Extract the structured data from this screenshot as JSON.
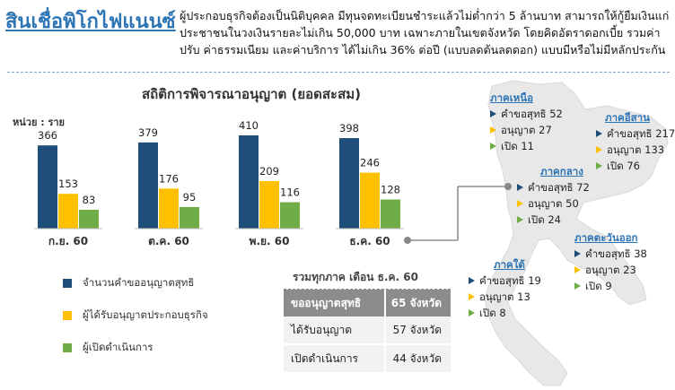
{
  "header": {
    "title": "สินเชื่อพิโกไฟแนนซ์",
    "description": "ผู้ประกอบธุรกิจต้องเป็นนิติบุคคล มีทุนจดทะเบียนชำระแล้วไม่ต่ำกว่า 5 ล้านบาท สามารถให้กู้ยืมเงินแก่ประชาชนในวงเงินรายละไม่เกิน 50,000 บาท เฉพาะภายในเขตจังหวัด โดยคิดอัตราดอกเบี้ย รวมค่าปรับ ค่าธรรมเนียม และค่าบริการ ได้ไม่เกิน 36% ต่อปี (แบบลดต้นลดดอก) แบบมีหรือไม่มีหลักประกัน"
  },
  "chart_data": {
    "type": "bar",
    "title": "สถิติการพิจารณาอนุญาต (ยอดสะสม)",
    "ylabel": "หน่วย : ราย",
    "categories": [
      "ก.ย. 60",
      "ต.ค. 60",
      "พ.ย. 60",
      "ธ.ค. 60"
    ],
    "series": [
      {
        "name": "จำนวนคำขออนุญาตสุทธิ",
        "color": "#1f4e79",
        "values": [
          366,
          379,
          410,
          398
        ]
      },
      {
        "name": "ผู้ได้รับอนุญาตประกอบธุรกิจ",
        "color": "#ffc000",
        "values": [
          153,
          176,
          209,
          246
        ]
      },
      {
        "name": "ผู้เปิดดำเนินการ",
        "color": "#70ad47",
        "values": [
          83,
          95,
          116,
          128
        ]
      }
    ],
    "ylim": [
      0,
      460
    ],
    "grid": false,
    "legend": "bottom-left"
  },
  "summary": {
    "title": "รวมทุกภาค เดือน ธ.ค. 60",
    "header": {
      "label": "ขออนุญาตสุทธิ",
      "value": "65 จังหวัด"
    },
    "rows": [
      {
        "label": "ได้รับอนุญาต",
        "value": "57 จังหวัด"
      },
      {
        "label": "เปิดดำเนินการ",
        "value": "44 จังหวัด"
      }
    ]
  },
  "regions": [
    {
      "name": "ภาคเหนือ",
      "items": [
        {
          "text": "คำขอสุทธิ 52",
          "color": "#1f4e79"
        },
        {
          "text": "อนุญาต 27",
          "color": "#ffc000"
        },
        {
          "text": "เปิด 11",
          "color": "#70ad47"
        }
      ]
    },
    {
      "name": "ภาคอีสาน",
      "items": [
        {
          "text": "คำขอสุทธิ 217",
          "color": "#1f4e79"
        },
        {
          "text": "อนุญาต 133",
          "color": "#ffc000"
        },
        {
          "text": "เปิด 76",
          "color": "#70ad47"
        }
      ]
    },
    {
      "name": "ภาคกลาง",
      "items": [
        {
          "text": "คำขอสุทธิ 72",
          "color": "#1f4e79"
        },
        {
          "text": "อนุญาต 50",
          "color": "#ffc000"
        },
        {
          "text": "เปิด 24",
          "color": "#70ad47"
        }
      ]
    },
    {
      "name": "ภาคตะวันออก",
      "items": [
        {
          "text": "คำขอสุทธิ 38",
          "color": "#1f4e79"
        },
        {
          "text": "อนุญาต 23",
          "color": "#ffc000"
        },
        {
          "text": "เปิด 9",
          "color": "#70ad47"
        }
      ]
    },
    {
      "name": "ภาคใต้",
      "items": [
        {
          "text": "คำขอสุทธิ 19",
          "color": "#1f4e79"
        },
        {
          "text": "อนุญาต 13",
          "color": "#ffc000"
        },
        {
          "text": "เปิด 8",
          "color": "#70ad47"
        }
      ]
    }
  ],
  "map_icon": "thailand-map-silhouette"
}
